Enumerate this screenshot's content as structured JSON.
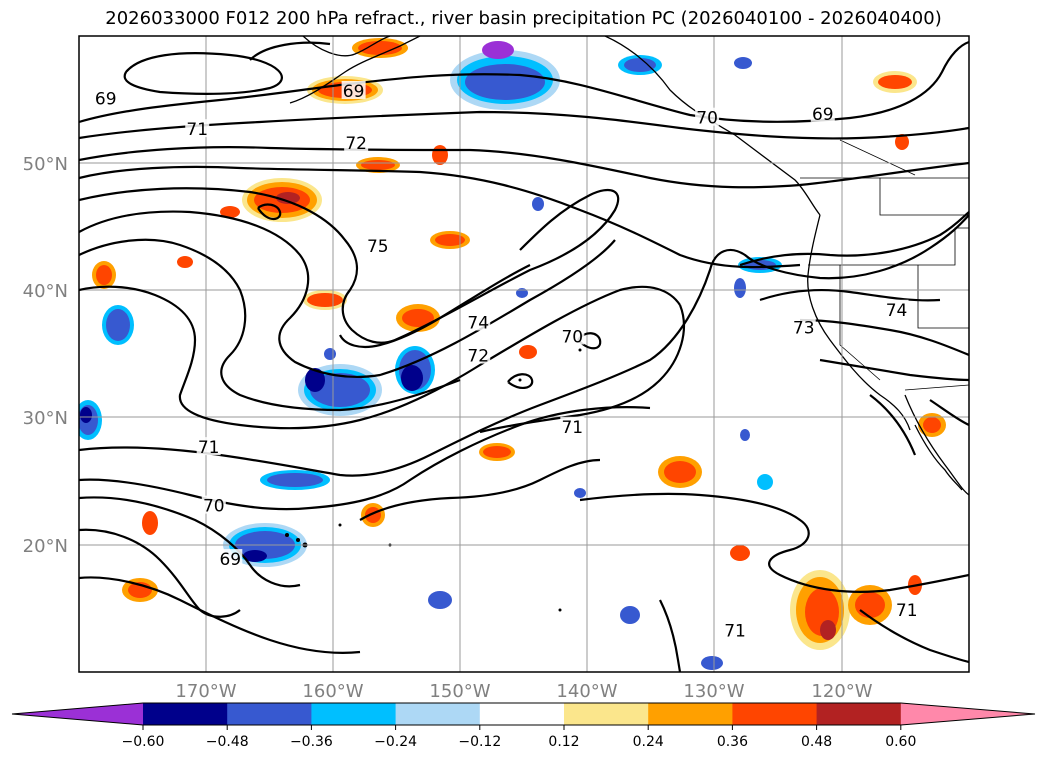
{
  "title": "2026033000 F012 200 hPa refract., river basin precipitation PC (2026040100 - 2026040400)",
  "map": {
    "extent": {
      "lon_min": -180,
      "lon_max": -110,
      "lat_min": 10,
      "lat_max": 60
    },
    "lat_ticks": [
      {
        "label": "20°N",
        "value": 20
      },
      {
        "label": "30°N",
        "value": 30
      },
      {
        "label": "40°N",
        "value": 40
      },
      {
        "label": "50°N",
        "value": 50
      }
    ],
    "lon_ticks": [
      {
        "label": "170°W",
        "value": -170
      },
      {
        "label": "160°W",
        "value": -160
      },
      {
        "label": "150°W",
        "value": -150
      },
      {
        "label": "140°W",
        "value": -140
      },
      {
        "label": "130°W",
        "value": -130
      },
      {
        "label": "120°W",
        "value": -120
      }
    ],
    "contour_labels": [
      {
        "text": "69",
        "lon": -158.4,
        "lat": 55.6
      },
      {
        "text": "69",
        "lon": -177.9,
        "lat": 55.0
      },
      {
        "text": "71",
        "lon": -170.7,
        "lat": 52.6
      },
      {
        "text": "72",
        "lon": -158.2,
        "lat": 51.5
      },
      {
        "text": "70",
        "lon": -130.6,
        "lat": 53.5
      },
      {
        "text": "69",
        "lon": -121.5,
        "lat": 53.8
      },
      {
        "text": "75",
        "lon": -156.5,
        "lat": 43.4
      },
      {
        "text": "74",
        "lon": -148.6,
        "lat": 37.4
      },
      {
        "text": "72",
        "lon": -148.6,
        "lat": 34.8
      },
      {
        "text": "70",
        "lon": -141.2,
        "lat": 36.3
      },
      {
        "text": "71",
        "lon": -141.2,
        "lat": 29.2
      },
      {
        "text": "71",
        "lon": -169.8,
        "lat": 27.6
      },
      {
        "text": "70",
        "lon": -169.4,
        "lat": 23.0
      },
      {
        "text": "69",
        "lon": -168.1,
        "lat": 18.8
      },
      {
        "text": "73",
        "lon": -123.0,
        "lat": 37.0
      },
      {
        "text": "74",
        "lon": -115.7,
        "lat": 38.4
      },
      {
        "text": "71",
        "lon": -114.9,
        "lat": 14.8
      },
      {
        "text": "71",
        "lon": -128.4,
        "lat": 13.2
      }
    ]
  },
  "colorbar": {
    "colors": [
      "#9b30d6",
      "#00008b",
      "#3759d0",
      "#00bfff",
      "#add8f5",
      "#ffffff",
      "#fbe68c",
      "#ffa000",
      "#ff4500",
      "#b22222",
      "#ff88aa"
    ],
    "ticks": [
      "−0.60",
      "−0.48",
      "−0.36",
      "−0.24",
      "−0.12",
      "0.12",
      "0.24",
      "0.36",
      "0.48",
      "0.60"
    ]
  }
}
